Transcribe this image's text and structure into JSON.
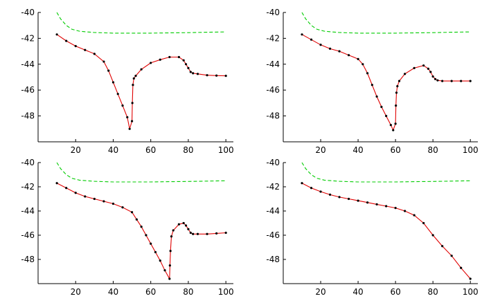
{
  "chart_data": [
    {
      "type": "line",
      "title": "",
      "xlabel": "",
      "ylabel": "",
      "xlim": [
        0,
        104
      ],
      "ylim": [
        -50,
        -40
      ],
      "xticks": [
        20,
        40,
        60,
        80,
        100
      ],
      "yticks": [
        -48,
        -46,
        -44,
        -42,
        -40
      ],
      "xtick_labels": [
        "20",
        "40",
        "60",
        "80",
        "100"
      ],
      "ytick_labels": [
        "-48",
        "-46",
        "-44",
        "-42",
        "-40"
      ],
      "grid": false,
      "series": [
        {
          "style": "dashed",
          "color": "#00cc00",
          "markers": false,
          "x": [
            10,
            12,
            15,
            18,
            22,
            26,
            30,
            40,
            50,
            60,
            70,
            80,
            90,
            100
          ],
          "y": [
            -40.0,
            -40.5,
            -41.0,
            -41.3,
            -41.45,
            -41.5,
            -41.55,
            -41.6,
            -41.6,
            -41.6,
            -41.58,
            -41.56,
            -41.53,
            -41.5
          ]
        },
        {
          "style": "solid",
          "color": "#e00000",
          "markers": true,
          "marker_color": "#000000",
          "x": [
            10,
            15,
            20,
            25,
            30,
            35,
            37.5,
            40,
            42.5,
            45,
            47.5,
            48.75,
            50,
            50.2,
            50.5,
            51,
            52,
            55,
            60,
            65,
            70,
            75,
            77.5,
            78.75,
            80,
            81.25,
            82.5,
            85,
            90,
            95,
            100
          ],
          "y": [
            -41.7,
            -42.2,
            -42.6,
            -42.9,
            -43.2,
            -43.8,
            -44.5,
            -45.4,
            -46.3,
            -47.2,
            -48.1,
            -49.0,
            -48.4,
            -47.0,
            -45.6,
            -45.1,
            -44.9,
            -44.4,
            -43.9,
            -43.65,
            -43.45,
            -43.45,
            -43.7,
            -44.0,
            -44.3,
            -44.6,
            -44.7,
            -44.75,
            -44.85,
            -44.88,
            -44.9
          ]
        }
      ]
    },
    {
      "type": "line",
      "title": "",
      "xlabel": "",
      "ylabel": "",
      "xlim": [
        0,
        104
      ],
      "ylim": [
        -50,
        -40
      ],
      "xticks": [
        20,
        40,
        60,
        80,
        100
      ],
      "yticks": [
        -48,
        -46,
        -44,
        -42,
        -40
      ],
      "xtick_labels": [
        "20",
        "40",
        "60",
        "80",
        "100"
      ],
      "ytick_labels": [
        "-48",
        "-46",
        "-44",
        "-42",
        "-40"
      ],
      "grid": false,
      "series": [
        {
          "style": "dashed",
          "color": "#00cc00",
          "markers": false,
          "x": [
            10,
            12,
            15,
            18,
            22,
            26,
            30,
            40,
            50,
            60,
            70,
            80,
            90,
            100
          ],
          "y": [
            -40.0,
            -40.5,
            -41.0,
            -41.3,
            -41.45,
            -41.5,
            -41.55,
            -41.6,
            -41.6,
            -41.6,
            -41.58,
            -41.56,
            -41.53,
            -41.5
          ]
        },
        {
          "style": "solid",
          "color": "#e00000",
          "markers": true,
          "marker_color": "#000000",
          "x": [
            10,
            15,
            20,
            25,
            30,
            35,
            40,
            42.5,
            45,
            47.5,
            50,
            52.5,
            55,
            57.5,
            58.75,
            60,
            60.2,
            60.5,
            61,
            62,
            65,
            70,
            75,
            77.5,
            78.75,
            80,
            81.25,
            82.5,
            85,
            90,
            95,
            100
          ],
          "y": [
            -41.7,
            -42.1,
            -42.5,
            -42.8,
            -43.0,
            -43.3,
            -43.6,
            -44.0,
            -44.7,
            -45.6,
            -46.5,
            -47.3,
            -48.0,
            -48.7,
            -49.1,
            -48.6,
            -47.2,
            -46.2,
            -45.7,
            -45.3,
            -44.75,
            -44.3,
            -44.1,
            -44.35,
            -44.6,
            -44.95,
            -45.15,
            -45.25,
            -45.3,
            -45.3,
            -45.3,
            -45.3
          ]
        }
      ]
    },
    {
      "type": "line",
      "title": "",
      "xlabel": "",
      "ylabel": "",
      "xlim": [
        0,
        104
      ],
      "ylim": [
        -50,
        -40
      ],
      "xticks": [
        20,
        40,
        60,
        80,
        100
      ],
      "yticks": [
        -48,
        -46,
        -44,
        -42,
        -40
      ],
      "xtick_labels": [
        "20",
        "40",
        "60",
        "80",
        "100"
      ],
      "ytick_labels": [
        "-48",
        "-46",
        "-44",
        "-42",
        "-40"
      ],
      "grid": false,
      "series": [
        {
          "style": "dashed",
          "color": "#00cc00",
          "markers": false,
          "x": [
            10,
            12,
            15,
            18,
            22,
            26,
            30,
            40,
            50,
            60,
            70,
            80,
            90,
            100
          ],
          "y": [
            -40.0,
            -40.5,
            -41.0,
            -41.3,
            -41.45,
            -41.5,
            -41.55,
            -41.6,
            -41.6,
            -41.6,
            -41.58,
            -41.56,
            -41.53,
            -41.5
          ]
        },
        {
          "style": "solid",
          "color": "#e00000",
          "markers": true,
          "marker_color": "#000000",
          "x": [
            10,
            15,
            20,
            25,
            30,
            35,
            40,
            45,
            50,
            52.5,
            55,
            57.5,
            60,
            62.5,
            65,
            67.5,
            70,
            70.2,
            70.5,
            71,
            72,
            75,
            77.5,
            78.75,
            80,
            81.25,
            82.5,
            85,
            90,
            95,
            100
          ],
          "y": [
            -41.7,
            -42.1,
            -42.5,
            -42.8,
            -43.0,
            -43.2,
            -43.4,
            -43.7,
            -44.1,
            -44.7,
            -45.3,
            -46.0,
            -46.7,
            -47.4,
            -48.1,
            -48.9,
            -49.6,
            -48.5,
            -47.3,
            -46.1,
            -45.6,
            -45.1,
            -45.0,
            -45.2,
            -45.5,
            -45.8,
            -45.9,
            -45.9,
            -45.9,
            -45.85,
            -45.8
          ]
        }
      ]
    },
    {
      "type": "line",
      "title": "",
      "xlabel": "",
      "ylabel": "",
      "xlim": [
        0,
        104
      ],
      "ylim": [
        -50,
        -40
      ],
      "xticks": [
        20,
        40,
        60,
        80,
        100
      ],
      "yticks": [
        -48,
        -46,
        -44,
        -42,
        -40
      ],
      "xtick_labels": [
        "20",
        "40",
        "60",
        "80",
        "100"
      ],
      "ytick_labels": [
        "-48",
        "-46",
        "-44",
        "-42",
        "-40"
      ],
      "grid": false,
      "series": [
        {
          "style": "dashed",
          "color": "#00cc00",
          "markers": false,
          "x": [
            10,
            12,
            15,
            18,
            22,
            26,
            30,
            40,
            50,
            60,
            70,
            80,
            90,
            100
          ],
          "y": [
            -40.0,
            -40.5,
            -41.0,
            -41.3,
            -41.45,
            -41.5,
            -41.55,
            -41.6,
            -41.6,
            -41.6,
            -41.58,
            -41.56,
            -41.53,
            -41.5
          ]
        },
        {
          "style": "solid",
          "color": "#e00000",
          "markers": true,
          "marker_color": "#000000",
          "x": [
            10,
            15,
            20,
            25,
            30,
            35,
            40,
            45,
            50,
            55,
            60,
            65,
            70,
            75,
            80,
            85,
            90,
            95,
            100
          ],
          "y": [
            -41.7,
            -42.1,
            -42.4,
            -42.65,
            -42.85,
            -43.0,
            -43.15,
            -43.3,
            -43.45,
            -43.6,
            -43.75,
            -44.0,
            -44.35,
            -45.0,
            -46.0,
            -46.9,
            -47.7,
            -48.7,
            -49.6
          ]
        }
      ]
    }
  ]
}
